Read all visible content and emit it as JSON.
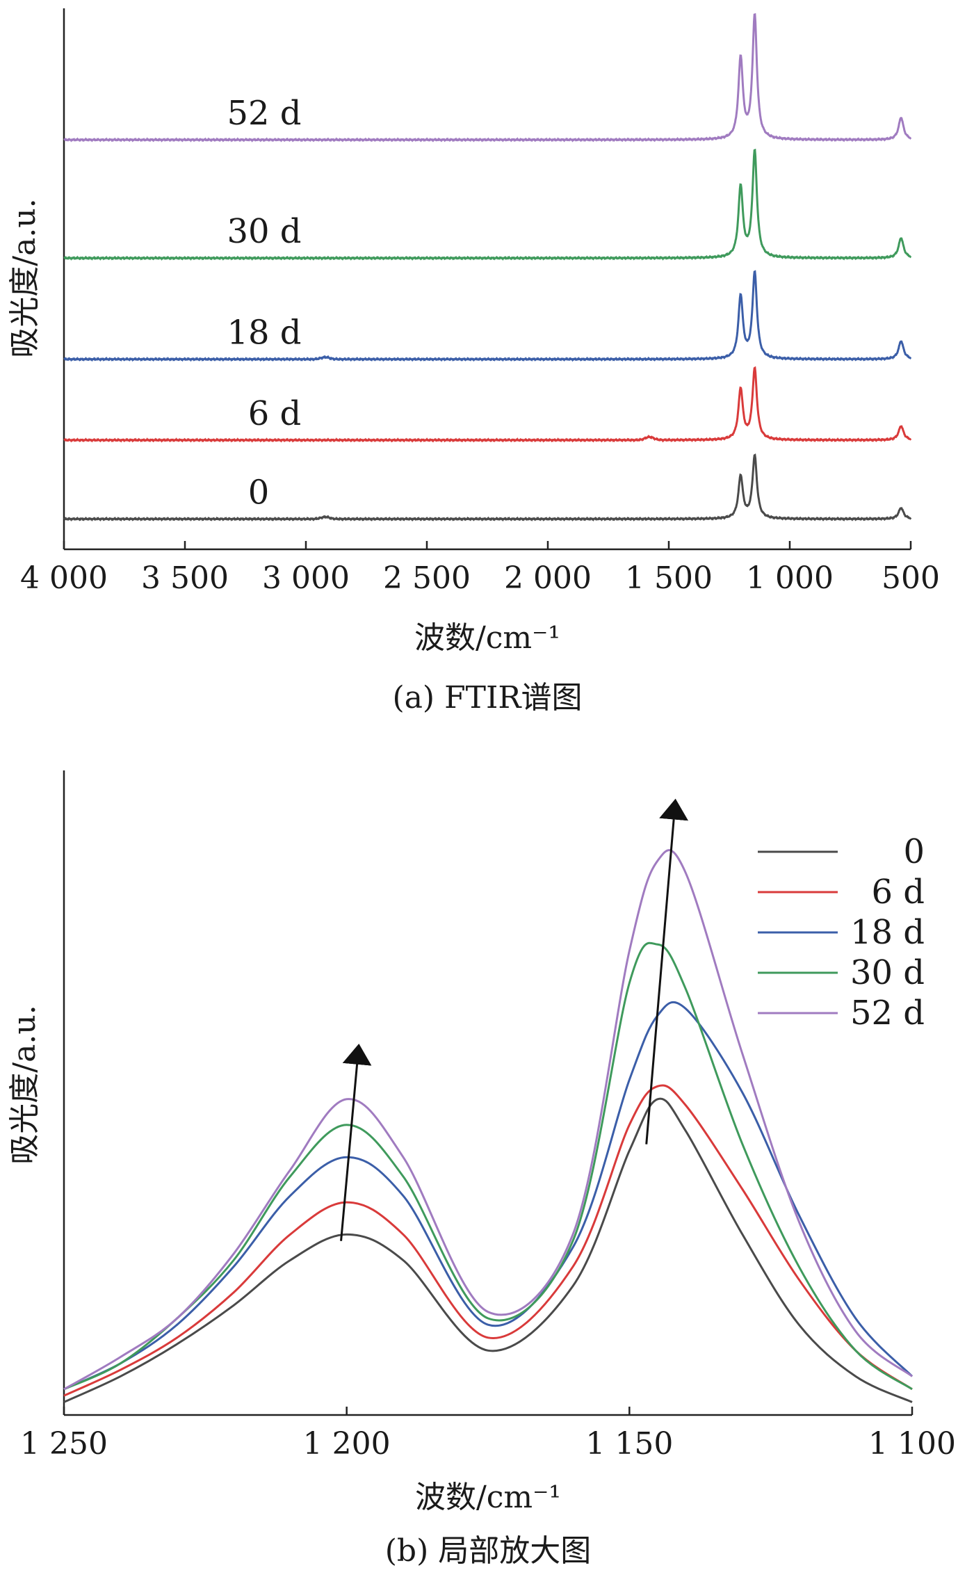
{
  "chart_data": [
    {
      "type": "line",
      "caption": "(a) FTIR谱图",
      "xlabel": "波数/cm⁻¹",
      "ylabel": "吸光度/a.u.",
      "xlim": [
        4000,
        500
      ],
      "xticks": [
        4000,
        3500,
        3000,
        2500,
        2000,
        1500,
        1000,
        500
      ],
      "xtick_labels": [
        "4 000",
        "3 500",
        "3 000",
        "2 500",
        "2 000",
        "1 500",
        "1 000",
        "500"
      ],
      "legend": "inline labels above each offset trace",
      "series": [
        {
          "name": "0",
          "color": "#4a4a4a",
          "baseline": 0,
          "peaks": [
            [
              1203,
              0.42
            ],
            [
              1145,
              0.62
            ],
            [
              540,
              0.11
            ]
          ],
          "bumps": [
            [
              2920,
              0.02
            ]
          ],
          "x": [
            4000,
            3000,
            2000,
            1500,
            1250,
            1203,
            1175,
            1145,
            1100,
            600,
            540,
            500
          ],
          "values": [
            0,
            0,
            0,
            0,
            0.02,
            0.42,
            0.12,
            0.62,
            0.03,
            0.01,
            0.11,
            0
          ]
        },
        {
          "name": "6 d",
          "color": "#d93a3a",
          "baseline": 0.78,
          "peaks": [
            [
              1203,
              0.5
            ],
            [
              1145,
              0.7
            ],
            [
              540,
              0.14
            ]
          ],
          "bumps": [
            [
              1580,
              0.03
            ]
          ],
          "x": [
            4000,
            3000,
            2000,
            1500,
            1250,
            1203,
            1175,
            1145,
            1100,
            600,
            540,
            500
          ],
          "values": [
            0.78,
            0.78,
            0.78,
            0.78,
            0.8,
            1.28,
            0.9,
            1.48,
            0.81,
            0.79,
            0.92,
            0.78
          ]
        },
        {
          "name": "18 d",
          "color": "#3b5ea8",
          "baseline": 1.58,
          "peaks": [
            [
              1203,
              0.62
            ],
            [
              1145,
              0.85
            ],
            [
              540,
              0.18
            ]
          ],
          "bumps": [
            [
              2920,
              0.02
            ]
          ],
          "x": [
            4000,
            3000,
            2000,
            1500,
            1250,
            1203,
            1175,
            1145,
            1100,
            600,
            540,
            500
          ],
          "values": [
            1.58,
            1.58,
            1.58,
            1.58,
            1.6,
            2.2,
            1.7,
            2.43,
            1.62,
            1.59,
            1.76,
            1.58
          ]
        },
        {
          "name": "30 d",
          "color": "#3f9a5c",
          "baseline": 2.58,
          "peaks": [
            [
              1203,
              0.7
            ],
            [
              1145,
              1.05
            ],
            [
              540,
              0.2
            ]
          ],
          "bumps": [],
          "x": [
            4000,
            3000,
            2000,
            1500,
            1250,
            1203,
            1175,
            1145,
            1100,
            600,
            540,
            500
          ],
          "values": [
            2.58,
            2.58,
            2.58,
            2.58,
            2.6,
            3.28,
            2.72,
            3.63,
            2.62,
            2.59,
            2.78,
            2.58
          ]
        },
        {
          "name": "52 d",
          "color": "#a07bc0",
          "baseline": 3.75,
          "peaks": [
            [
              1203,
              0.8
            ],
            [
              1145,
              1.22
            ],
            [
              540,
              0.22
            ]
          ],
          "bumps": [],
          "x": [
            4000,
            3000,
            2000,
            1500,
            1250,
            1203,
            1175,
            1145,
            1100,
            600,
            540,
            500
          ],
          "values": [
            3.75,
            3.75,
            3.75,
            3.75,
            3.77,
            4.55,
            3.9,
            4.97,
            3.79,
            3.76,
            3.97,
            3.75
          ]
        }
      ]
    },
    {
      "type": "line",
      "caption": "(b) 局部放大图",
      "xlabel": "波数/cm⁻¹",
      "ylabel": "吸光度/a.u.",
      "xlim": [
        1250,
        1100
      ],
      "ylim": [
        0,
        1.0
      ],
      "xticks": [
        1250,
        1200,
        1150,
        1100
      ],
      "xtick_labels": [
        "1 250",
        "1 200",
        "1 150",
        "1 100"
      ],
      "legend": "top-right",
      "x": [
        1250,
        1240,
        1230,
        1220,
        1210,
        1200,
        1190,
        1175,
        1160,
        1150,
        1145,
        1140,
        1130,
        1120,
        1110,
        1100
      ],
      "series": [
        {
          "name": "0",
          "color": "#4a4a4a",
          "values": [
            0.02,
            0.06,
            0.11,
            0.17,
            0.24,
            0.28,
            0.24,
            0.1,
            0.2,
            0.41,
            0.49,
            0.44,
            0.28,
            0.14,
            0.06,
            0.02
          ]
        },
        {
          "name": "6 d",
          "color": "#d93a3a",
          "values": [
            0.03,
            0.07,
            0.12,
            0.19,
            0.28,
            0.33,
            0.28,
            0.12,
            0.23,
            0.45,
            0.51,
            0.48,
            0.35,
            0.21,
            0.1,
            0.04
          ]
        },
        {
          "name": "18 d",
          "color": "#3b5ea8",
          "values": [
            0.04,
            0.08,
            0.14,
            0.23,
            0.34,
            0.4,
            0.34,
            0.14,
            0.26,
            0.52,
            0.62,
            0.63,
            0.5,
            0.31,
            0.15,
            0.06
          ]
        },
        {
          "name": "30 d",
          "color": "#3f9a5c",
          "values": [
            0.04,
            0.08,
            0.15,
            0.24,
            0.37,
            0.45,
            0.37,
            0.15,
            0.27,
            0.67,
            0.73,
            0.66,
            0.42,
            0.23,
            0.1,
            0.04
          ]
        },
        {
          "name": "52 d",
          "color": "#a07bc0",
          "values": [
            0.04,
            0.09,
            0.15,
            0.25,
            0.38,
            0.49,
            0.4,
            0.16,
            0.28,
            0.72,
            0.86,
            0.84,
            0.56,
            0.3,
            0.13,
            0.06
          ]
        }
      ],
      "arrows": [
        {
          "from": [
            1201,
            0.27
          ],
          "to": [
            1198,
            0.56
          ]
        },
        {
          "from": [
            1147,
            0.42
          ],
          "to": [
            1142,
            0.94
          ]
        }
      ]
    }
  ]
}
